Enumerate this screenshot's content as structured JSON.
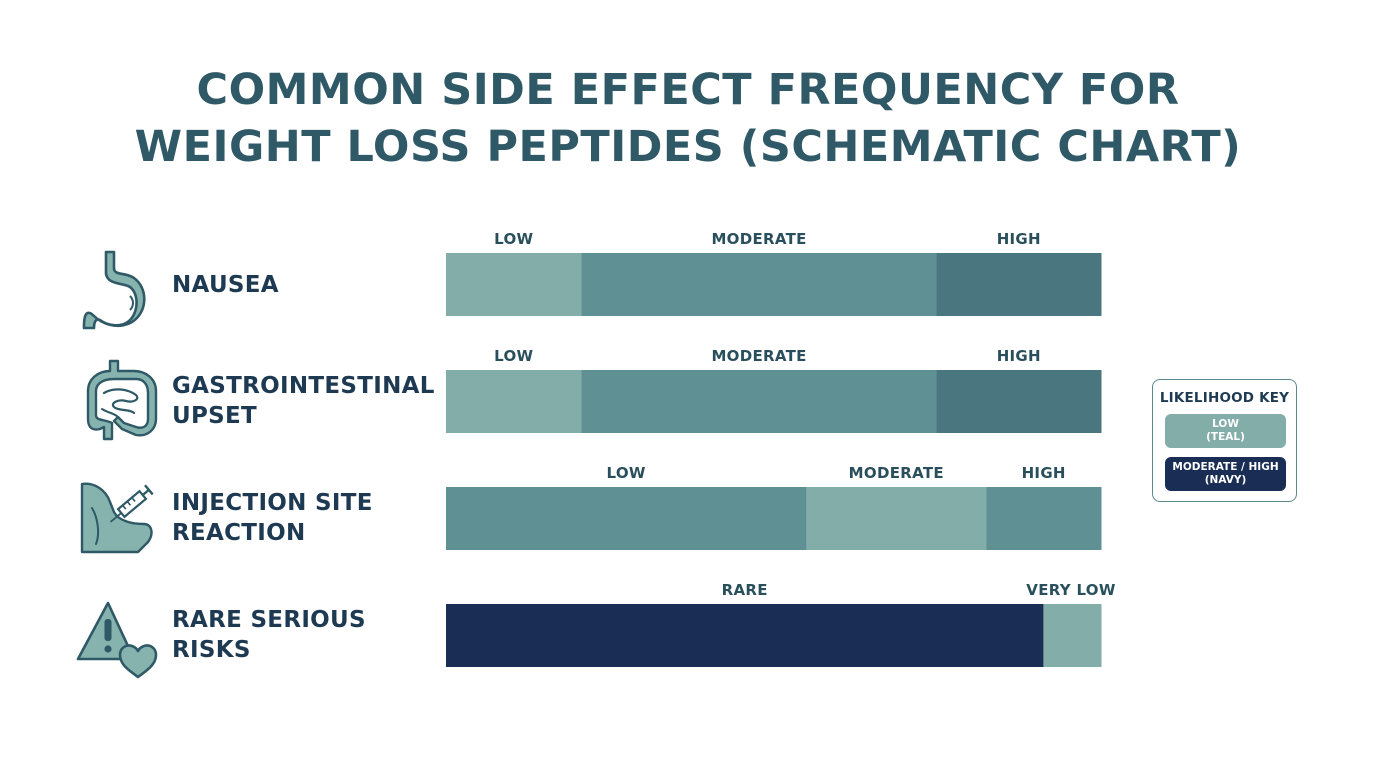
{
  "title": {
    "line1": "COMMON SIDE EFFECT FREQUENCY FOR",
    "line2": "WEIGHT LOSS PEPTIDES (SCHEMATIC CHART)"
  },
  "colors": {
    "title": "#2f5966",
    "light_teal": "#82ada9",
    "teal": "#5f9194",
    "dark_teal": "#4a7680",
    "navy": "#1a2e55",
    "icon_fill": "#86b3ae",
    "icon_stroke": "#2f5966"
  },
  "legend": {
    "title": "LIKELIHOOD KEY",
    "items": [
      {
        "line1": "LOW",
        "line2": "(TEAL)",
        "color": "#82ada9"
      },
      {
        "line1": "MODERATE / HIGH",
        "line2": "(NAVY)",
        "color": "#1a2e55"
      }
    ]
  },
  "chart_data": {
    "type": "bar",
    "title": "COMMON SIDE EFFECT FREQUENCY FOR WEIGHT LOSS PEPTIDES (SCHEMATIC CHART)",
    "orientation": "horizontal-stacked",
    "xlim": [
      0,
      1
    ],
    "legend_position": "right",
    "categories": [
      {
        "label_lines": [
          "NAUSEA"
        ],
        "icon": "stomach-icon",
        "segments": [
          {
            "label": "LOW",
            "share": 0.207,
            "color": "#82ada9"
          },
          {
            "label": "MODERATE",
            "share": 0.542,
            "color": "#5f9194"
          },
          {
            "label": "HIGH",
            "share": 0.251,
            "color": "#4a7680"
          }
        ]
      },
      {
        "label_lines": [
          "GASTROINTESTINAL",
          "UPSET"
        ],
        "icon": "intestines-icon",
        "segments": [
          {
            "label": "LOW",
            "share": 0.207,
            "color": "#82ada9"
          },
          {
            "label": "MODERATE",
            "share": 0.542,
            "color": "#5f9194"
          },
          {
            "label": "HIGH",
            "share": 0.251,
            "color": "#4a7680"
          }
        ]
      },
      {
        "label_lines": [
          "INJECTION SITE",
          "REACTION"
        ],
        "icon": "syringe-arm-icon",
        "segments": [
          {
            "label": "LOW",
            "share": 0.55,
            "color": "#5f9194"
          },
          {
            "label": "MODERATE",
            "share": 0.275,
            "color": "#82ada9"
          },
          {
            "label": "HIGH",
            "share": 0.175,
            "color": "#5f9194"
          }
        ]
      },
      {
        "label_lines": [
          "RARE SERIOUS",
          "RISKS"
        ],
        "icon": "warning-heart-icon",
        "segments": [
          {
            "label": "RARE",
            "share": 0.912,
            "color": "#1a2e55"
          },
          {
            "label": "VERY LOW",
            "share": 0.088,
            "color": "#82ada9"
          }
        ]
      }
    ]
  }
}
